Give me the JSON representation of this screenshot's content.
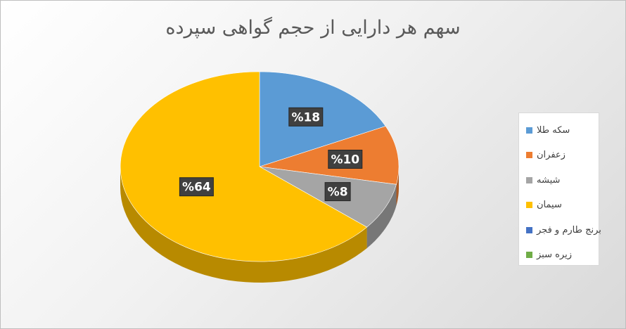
{
  "chart_data": {
    "type": "pie",
    "title": "سهم هر دارایی از حجم گواهی سپرده",
    "categories": [
      "سکه طلا",
      "زعفران",
      "شیشه",
      "سیمان",
      "برنج طارم و فجر",
      "زیره سبز"
    ],
    "values": [
      18,
      10,
      8,
      64,
      0,
      0
    ],
    "data_labels": [
      "%18",
      "%10",
      "%8",
      "%64",
      "",
      ""
    ],
    "colors": [
      "#5b9bd5",
      "#ed7d31",
      "#a5a5a5",
      "#ffc000",
      "#4472c4",
      "#70ad47"
    ],
    "style": "3d-pie",
    "legend": "right"
  }
}
